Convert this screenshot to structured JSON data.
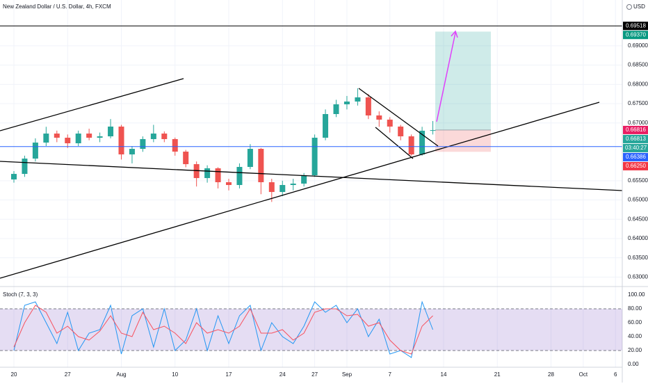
{
  "chart_data": [
    {
      "type": "candlestick",
      "title": "New Zealand Dollar / U.S. Dollar, 4h, FXCM",
      "currency": "USD",
      "categories": [
        "20",
        null,
        null,
        null,
        null,
        "27",
        null,
        null,
        null,
        null,
        "Aug",
        null,
        null,
        null,
        null,
        "10",
        null,
        null,
        null,
        null,
        "17",
        null,
        null,
        null,
        null,
        "24",
        null,
        null,
        "27",
        null,
        null,
        "Sep",
        null,
        null,
        null,
        "7",
        null,
        null,
        null,
        null,
        "14",
        null,
        null,
        null,
        null,
        "21",
        null,
        null,
        null,
        null,
        "28",
        null,
        null,
        "Oct",
        null,
        null,
        "6"
      ],
      "open": [
        0.65533,
        0.65677,
        0.66075,
        0.6649,
        0.66724,
        0.66616,
        0.66472,
        0.66724,
        0.66616,
        0.66652,
        0.66905,
        0.66183,
        0.66327,
        0.6658,
        0.66724,
        0.6658,
        0.66255,
        0.6593,
        0.65569,
        0.65822,
        0.65461,
        0.65389,
        0.65858,
        0.66327,
        0.65461,
        0.65208,
        0.65389,
        0.65425,
        0.65641,
        0.66616,
        0.6723,
        0.67483,
        0.67555,
        0.67663,
        0.67194,
        0.67085,
        0.66905,
        0.66652,
        0.66183,
        0.66797,
        null,
        null,
        null,
        null,
        null,
        null,
        null,
        null,
        null,
        null,
        null,
        null,
        null,
        null,
        null,
        null,
        null
      ],
      "high": [
        0.6575,
        0.6615,
        0.666,
        0.669,
        0.668,
        0.667,
        0.668,
        0.6685,
        0.6675,
        0.671,
        0.6695,
        0.664,
        0.6665,
        0.6695,
        0.6678,
        0.6662,
        0.663,
        0.66,
        0.659,
        0.6585,
        0.6555,
        0.6595,
        0.6645,
        0.6635,
        0.6555,
        0.655,
        0.6555,
        0.657,
        0.667,
        0.6735,
        0.676,
        0.677,
        0.679,
        0.6775,
        0.673,
        0.6715,
        0.6695,
        0.667,
        0.669,
        0.6705,
        null,
        null,
        null,
        null,
        null,
        null,
        null,
        null,
        null,
        null,
        null,
        null,
        null,
        null,
        null,
        null,
        null
      ],
      "low": [
        0.6545,
        0.656,
        0.66,
        0.664,
        0.665,
        0.6635,
        0.664,
        0.6655,
        0.665,
        0.666,
        0.6605,
        0.6595,
        0.6625,
        0.665,
        0.665,
        0.6615,
        0.6585,
        0.6535,
        0.6545,
        0.653,
        0.6525,
        0.653,
        0.658,
        0.6515,
        0.6495,
        0.651,
        0.6525,
        0.6535,
        0.656,
        0.6655,
        0.6715,
        0.6735,
        0.6745,
        0.671,
        0.669,
        0.6675,
        0.6655,
        0.6615,
        0.6615,
        0.667,
        null,
        null,
        null,
        null,
        null,
        null,
        null,
        null,
        null,
        null,
        null,
        null,
        null,
        null,
        null,
        null,
        null
      ],
      "close": [
        0.65677,
        0.66075,
        0.6649,
        0.66724,
        0.66616,
        0.66472,
        0.66724,
        0.66616,
        0.66652,
        0.66905,
        0.66183,
        0.66327,
        0.6658,
        0.66724,
        0.6658,
        0.66255,
        0.6593,
        0.65569,
        0.65822,
        0.65461,
        0.65389,
        0.65858,
        0.66327,
        0.65461,
        0.65208,
        0.65389,
        0.65425,
        0.65641,
        0.66616,
        0.6723,
        0.67483,
        0.67555,
        0.67663,
        0.67194,
        0.67085,
        0.66905,
        0.66652,
        0.66183,
        0.66797,
        0.66813,
        null,
        null,
        null,
        null,
        null,
        null,
        null,
        null,
        null,
        null,
        null,
        null,
        null,
        null,
        null,
        null,
        null
      ],
      "up_color": "#26a69a",
      "down_color": "#ef5350",
      "ylim": [
        0.6279,
        0.7019
      ],
      "yticks": [
        {
          "value": 0.63,
          "label": "0.63000"
        },
        {
          "value": 0.635,
          "label": "0.63500"
        },
        {
          "value": 0.64,
          "label": "0.64000"
        },
        {
          "value": 0.645,
          "label": "0.64500"
        },
        {
          "value": 0.65,
          "label": "0.65000"
        },
        {
          "value": 0.655,
          "label": "0.65500"
        },
        {
          "value": 0.67,
          "label": "0.67000"
        },
        {
          "value": 0.675,
          "label": "0.67500"
        },
        {
          "value": 0.68,
          "label": "0.68000"
        },
        {
          "value": 0.685,
          "label": "0.68500"
        },
        {
          "value": 0.69,
          "label": "0.69000"
        }
      ],
      "grid": true,
      "position": {
        "target": 0.6937,
        "entry": 0.66816,
        "stop": 0.6625
      },
      "price_labels": [
        {
          "value": 0.69518,
          "label": "0.69518",
          "color": "#000000"
        },
        {
          "value": 0.6937,
          "label": "0.69370",
          "color": "#089981"
        },
        {
          "value": 0.66816,
          "label": "0.66816",
          "color": "#e91e63"
        },
        {
          "value": 0.66813,
          "label": "0.66813",
          "color": "#26a69a"
        },
        {
          "value": 0.66386,
          "label": "0.66386",
          "color": "#2962ff"
        },
        {
          "value": 0.6625,
          "label": "0.66250",
          "color": "#f23645"
        }
      ],
      "countdown": "03:40:27"
    },
    {
      "type": "line",
      "title": "Stoch (7, 3, 3)",
      "series": [
        {
          "name": "%K",
          "color": "#2196f3",
          "values": [
            20,
            85,
            90,
            60,
            30,
            75,
            20,
            45,
            50,
            85,
            15,
            70,
            80,
            25,
            80,
            20,
            35,
            80,
            20,
            70,
            30,
            70,
            85,
            20,
            60,
            40,
            30,
            55,
            90,
            75,
            85,
            60,
            80,
            40,
            65,
            15,
            20,
            10,
            90,
            50
          ]
        },
        {
          "name": "%D",
          "color": "#f7525f",
          "values": [
            25,
            60,
            85,
            75,
            45,
            55,
            40,
            35,
            48,
            70,
            45,
            40,
            75,
            50,
            55,
            45,
            30,
            60,
            45,
            50,
            45,
            55,
            80,
            45,
            45,
            50,
            35,
            45,
            75,
            80,
            80,
            70,
            72,
            55,
            60,
            35,
            20,
            15,
            55,
            70
          ]
        }
      ],
      "bands": [
        20,
        80
      ],
      "band_color": "#7e57c2",
      "ylim": [
        -4,
        109
      ],
      "yticks": [
        {
          "value": 0,
          "label": "0.00"
        },
        {
          "value": 20,
          "label": "20.00"
        },
        {
          "value": 40,
          "label": "40.00"
        },
        {
          "value": 60,
          "label": "60.00"
        },
        {
          "value": 80,
          "label": "80.00"
        },
        {
          "value": 100,
          "label": "100.00"
        }
      ]
    }
  ]
}
